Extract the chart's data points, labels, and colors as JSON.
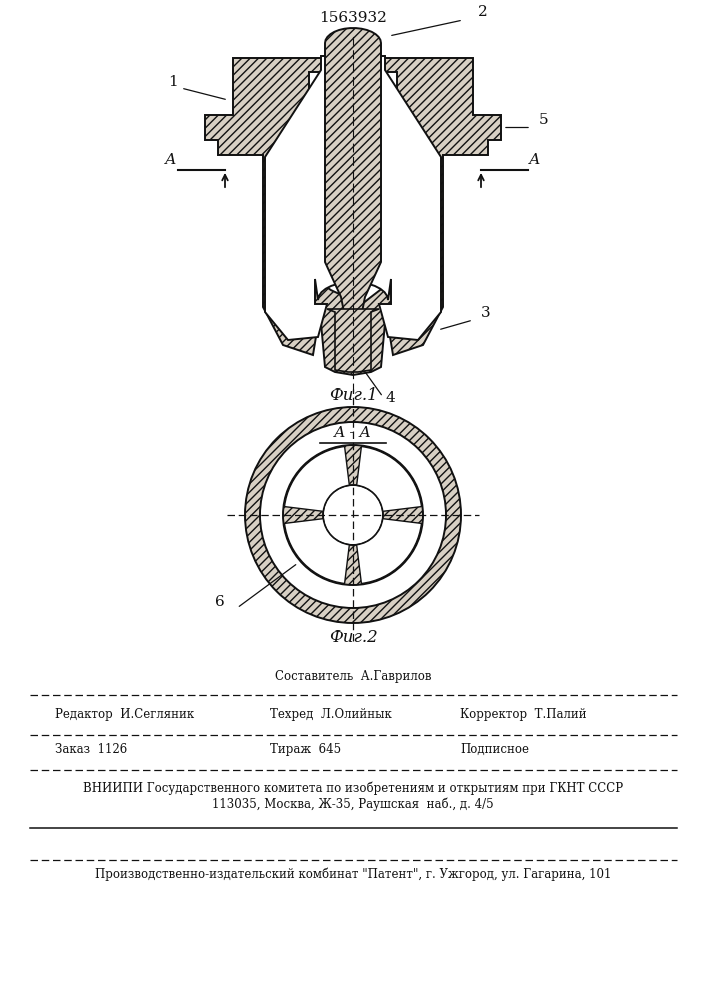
{
  "patent_number": "1563932",
  "fig1_caption": "Фиг.1",
  "fig2_caption": "Фиг.2",
  "section_label": "А - А",
  "bg_color": "#ffffff",
  "lc": "#111111",
  "fc_hatch": "#d8d0c4",
  "fc_white": "#ffffff",
  "footer": {
    "sostavitel": "Составитель  А.Гаврилов",
    "redaktor": "Редактор  И.Сегляник",
    "tehred": "Техред  Л.Олийнык",
    "korrektor": "Корректор  Т.Палий",
    "zakaz": "Заказ  1126",
    "tirazh": "Тираж  645",
    "podpisnoe": "Подписное",
    "vniishi": "ВНИИПИ Государственного комитета по изобретениям и открытиям при ГКНТ СССР",
    "address": "113035, Москва, Ж-35, Раушская  наб., д. 4/5",
    "proizvodstvo": "Производственно-издательский комбинат \"Патент\", г. Ужгород, ул. Гагарина, 101"
  }
}
